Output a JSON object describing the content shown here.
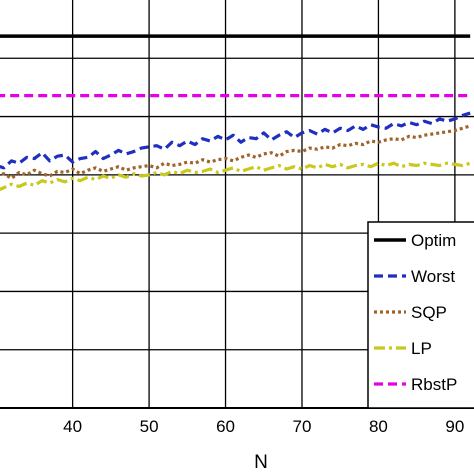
{
  "chart_data": {
    "type": "line",
    "xlabel": "N",
    "ylabel": "",
    "title": "",
    "xlim": [
      30.5,
      92.5
    ],
    "ylim": [
      0.0,
      7.0
    ],
    "xticks": [
      40,
      50,
      60,
      70,
      80,
      90
    ],
    "xtick_labels": [
      "40",
      "50",
      "60",
      "70",
      "80",
      "90"
    ],
    "yticks": [
      1,
      2,
      3,
      4,
      5,
      6
    ],
    "grid": true,
    "legend_placement": "right",
    "legend": [
      "Optim",
      "Worst",
      "SQP",
      "LP",
      "RbstP"
    ],
    "series": [
      {
        "name": "Optim",
        "color": "#000000",
        "style": "solid",
        "x": [
          30,
          92
        ],
        "y": [
          6.38,
          6.38
        ]
      },
      {
        "name": "RbstP",
        "color": "#e600e6",
        "style": "dashed",
        "x": [
          30,
          92
        ],
        "y": [
          5.36,
          5.36
        ]
      },
      {
        "name": "Worst",
        "color": "#1f2fbf",
        "style": "dashed",
        "x": [
          30,
          31,
          32,
          33,
          34,
          35,
          36,
          37,
          38,
          39,
          40,
          41,
          42,
          43,
          44,
          45,
          46,
          47,
          48,
          49,
          50,
          51,
          52,
          53,
          54,
          55,
          56,
          57,
          58,
          59,
          60,
          61,
          62,
          63,
          64,
          65,
          66,
          67,
          68,
          69,
          70,
          71,
          72,
          73,
          74,
          75,
          76,
          77,
          78,
          79,
          80,
          81,
          82,
          83,
          84,
          85,
          86,
          87,
          88,
          89,
          90,
          91,
          92
        ],
        "y": [
          4.16,
          4.12,
          4.24,
          4.2,
          4.3,
          4.28,
          4.38,
          4.24,
          4.32,
          4.34,
          4.22,
          4.28,
          4.3,
          4.4,
          4.28,
          4.34,
          4.42,
          4.36,
          4.4,
          4.46,
          4.48,
          4.5,
          4.44,
          4.56,
          4.5,
          4.58,
          4.52,
          4.62,
          4.58,
          4.66,
          4.6,
          4.68,
          4.56,
          4.64,
          4.62,
          4.72,
          4.6,
          4.68,
          4.74,
          4.64,
          4.72,
          4.76,
          4.7,
          4.78,
          4.72,
          4.8,
          4.76,
          4.84,
          4.78,
          4.86,
          4.82,
          4.8,
          4.88,
          4.84,
          4.9,
          4.86,
          4.92,
          4.88,
          4.96,
          4.92,
          4.96,
          5.02,
          5.06
        ]
      },
      {
        "name": "SQP",
        "color": "#a0632a",
        "style": "dotted",
        "x": [
          30,
          31,
          32,
          33,
          34,
          35,
          36,
          37,
          38,
          39,
          40,
          41,
          42,
          43,
          44,
          45,
          46,
          47,
          48,
          49,
          50,
          51,
          52,
          53,
          54,
          55,
          56,
          57,
          58,
          59,
          60,
          61,
          62,
          63,
          64,
          65,
          66,
          67,
          68,
          69,
          70,
          71,
          72,
          73,
          74,
          75,
          76,
          77,
          78,
          79,
          80,
          81,
          82,
          83,
          84,
          85,
          86,
          87,
          88,
          89,
          90,
          91,
          92
        ],
        "y": [
          3.98,
          4.02,
          3.94,
          4.04,
          4.0,
          4.08,
          4.02,
          3.98,
          4.06,
          4.04,
          4.1,
          4.02,
          4.08,
          4.12,
          4.06,
          4.1,
          4.14,
          4.08,
          4.12,
          4.14,
          4.16,
          4.12,
          4.2,
          4.16,
          4.18,
          4.22,
          4.2,
          4.26,
          4.22,
          4.26,
          4.28,
          4.24,
          4.3,
          4.34,
          4.3,
          4.36,
          4.38,
          4.32,
          4.4,
          4.42,
          4.4,
          4.46,
          4.44,
          4.48,
          4.46,
          4.52,
          4.5,
          4.54,
          4.52,
          4.58,
          4.56,
          4.6,
          4.62,
          4.6,
          4.66,
          4.64,
          4.68,
          4.7,
          4.72,
          4.74,
          4.76,
          4.8,
          4.84
        ]
      },
      {
        "name": "LP",
        "color": "#c8c81e",
        "style": "dashdot",
        "x": [
          30,
          31,
          32,
          33,
          34,
          35,
          36,
          37,
          38,
          39,
          40,
          41,
          42,
          43,
          44,
          45,
          46,
          47,
          48,
          49,
          50,
          51,
          52,
          53,
          54,
          55,
          56,
          57,
          58,
          59,
          60,
          61,
          62,
          63,
          64,
          65,
          66,
          67,
          68,
          69,
          70,
          71,
          72,
          73,
          74,
          75,
          76,
          77,
          78,
          79,
          80,
          81,
          82,
          83,
          84,
          85,
          86,
          87,
          88,
          89,
          90,
          91,
          92
        ],
        "y": [
          3.72,
          3.78,
          3.84,
          3.8,
          3.86,
          3.82,
          3.9,
          3.86,
          3.92,
          3.88,
          3.94,
          3.9,
          3.96,
          3.92,
          3.98,
          3.94,
          4.0,
          3.96,
          4.02,
          3.98,
          4.0,
          4.04,
          4.0,
          4.06,
          4.02,
          4.08,
          4.04,
          4.06,
          4.1,
          4.04,
          4.08,
          4.12,
          4.06,
          4.1,
          4.14,
          4.08,
          4.12,
          4.16,
          4.1,
          4.14,
          4.1,
          4.16,
          4.12,
          4.18,
          4.14,
          4.18,
          4.12,
          4.16,
          4.18,
          4.14,
          4.2,
          4.16,
          4.2,
          4.14,
          4.18,
          4.16,
          4.2,
          4.18,
          4.16,
          4.2,
          4.18,
          4.16,
          4.2
        ]
      }
    ]
  }
}
